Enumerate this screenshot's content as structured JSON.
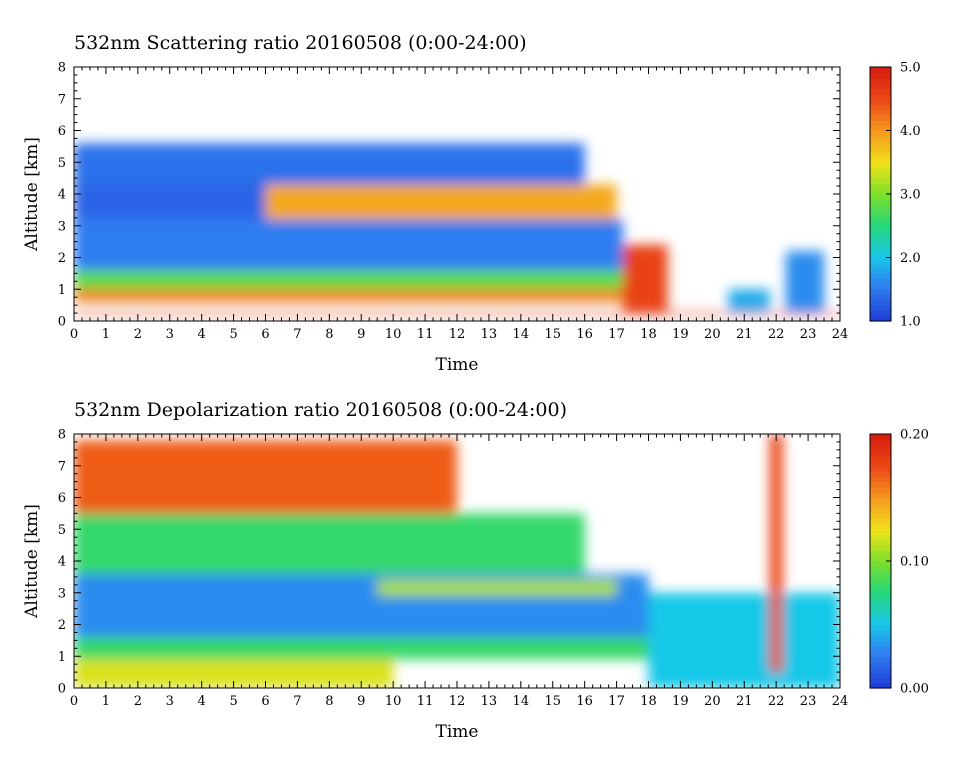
{
  "chart_data": [
    {
      "type": "heatmap",
      "title": "532nm Scattering ratio  20160508 (0:00-24:00)",
      "xlabel": "Time",
      "ylabel": "Altitude [km]",
      "xlim": [
        0,
        24
      ],
      "ylim": [
        0,
        8
      ],
      "x_ticks": [
        "0",
        "1",
        "2",
        "3",
        "4",
        "5",
        "6",
        "7",
        "8",
        "9",
        "10",
        "11",
        "12",
        "13",
        "14",
        "15",
        "16",
        "17",
        "18",
        "19",
        "20",
        "21",
        "22",
        "23",
        "24"
      ],
      "y_ticks": [
        "0",
        "1",
        "2",
        "3",
        "4",
        "5",
        "6",
        "7",
        "8"
      ],
      "colorbar": {
        "min": 1.0,
        "max": 5.0,
        "ticks": [
          "1.0",
          "2.0",
          "3.0",
          "4.0",
          "5.0"
        ]
      },
      "colormap": [
        "#1f3fd8",
        "#2f7df0",
        "#19c8e8",
        "#24d67a",
        "#7de02a",
        "#f0e21a",
        "#f59b1f",
        "#ec4b17",
        "#d81f10"
      ],
      "layers": [
        {
          "t0": 0,
          "t1": 24,
          "bottom": 0.18,
          "top": 0.26,
          "value": 4.9
        },
        {
          "t0": 0,
          "t1": 17.5,
          "bottom": 0.6,
          "top": 1.0,
          "value": 4.2
        },
        {
          "t0": 0,
          "t1": 17.5,
          "bottom": 1.0,
          "top": 1.6,
          "value": 2.8
        },
        {
          "t0": 0,
          "t1": 17.2,
          "bottom": 1.6,
          "top": 3.2,
          "value": 1.5
        },
        {
          "t0": 0,
          "t1": 6,
          "bottom": 3.2,
          "top": 4.6,
          "value": 1.3
        },
        {
          "t0": 6,
          "t1": 17,
          "bottom": 3.2,
          "top": 4.3,
          "value": 3.9
        },
        {
          "t0": 0,
          "t1": 16,
          "bottom": 4.3,
          "top": 5.6,
          "value": 1.4
        },
        {
          "t0": 17.2,
          "t1": 18.6,
          "bottom": 0.3,
          "top": 2.4,
          "value": 4.6
        },
        {
          "t0": 20.5,
          "t1": 21.8,
          "bottom": 0.3,
          "top": 1.0,
          "value": 1.8
        },
        {
          "t0": 22.3,
          "t1": 23.5,
          "bottom": 0.3,
          "top": 2.2,
          "value": 1.6
        }
      ]
    },
    {
      "type": "heatmap",
      "title": "532nm Depolarization ratio  20160508 (0:00-24:00)",
      "xlabel": "Time",
      "ylabel": "Altitude [km]",
      "xlim": [
        0,
        24
      ],
      "ylim": [
        0,
        8
      ],
      "x_ticks": [
        "0",
        "1",
        "2",
        "3",
        "4",
        "5",
        "6",
        "7",
        "8",
        "9",
        "10",
        "11",
        "12",
        "13",
        "14",
        "15",
        "16",
        "17",
        "18",
        "19",
        "20",
        "21",
        "22",
        "23",
        "24"
      ],
      "y_ticks": [
        "0",
        "1",
        "2",
        "3",
        "4",
        "5",
        "6",
        "7",
        "8"
      ],
      "colorbar": {
        "min": 0.0,
        "max": 0.2,
        "ticks": [
          "0.00",
          "0.10",
          "0.20"
        ]
      },
      "colormap": [
        "#1f3fd8",
        "#2f7df0",
        "#19c8e8",
        "#24d67a",
        "#7de02a",
        "#f0e21a",
        "#f59b1f",
        "#ec4b17",
        "#d81f10"
      ],
      "layers": [
        {
          "t0": 0,
          "t1": 10,
          "bottom": 0.0,
          "top": 0.9,
          "value": 0.12
        },
        {
          "t0": 0,
          "t1": 18,
          "bottom": 0.9,
          "top": 1.6,
          "value": 0.08
        },
        {
          "t0": 0,
          "t1": 18,
          "bottom": 1.6,
          "top": 3.6,
          "value": 0.03
        },
        {
          "t0": 9.5,
          "t1": 17,
          "bottom": 2.9,
          "top": 3.4,
          "value": 0.11
        },
        {
          "t0": 0,
          "t1": 16,
          "bottom": 3.6,
          "top": 5.5,
          "value": 0.08
        },
        {
          "t0": 0,
          "t1": 12,
          "bottom": 5.5,
          "top": 7.8,
          "value": 0.17
        },
        {
          "t0": 18,
          "t1": 24,
          "bottom": 0.0,
          "top": 3.0,
          "value": 0.05
        },
        {
          "t0": 21.8,
          "t1": 22.2,
          "bottom": 0.5,
          "top": 8.0,
          "value": 0.18
        }
      ]
    }
  ]
}
